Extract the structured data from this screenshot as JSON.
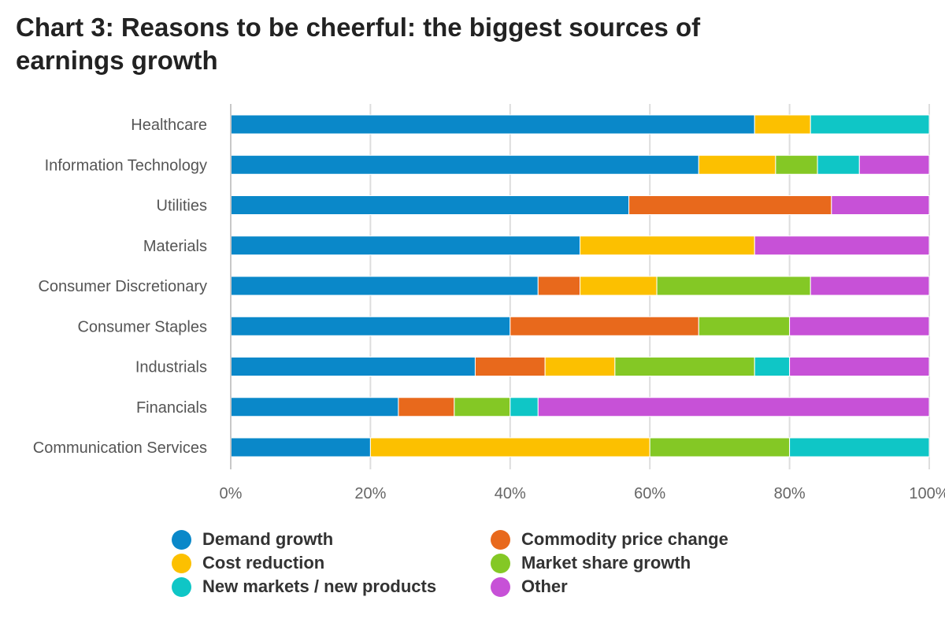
{
  "title": "Chart 3: Reasons to be cheerful: the biggest sources of earnings growth",
  "chart_data": {
    "type": "bar",
    "orientation": "horizontal",
    "stacked": true,
    "title": "Chart 3: Reasons to be cheerful: the biggest sources of earnings growth",
    "xlabel": "",
    "ylabel": "",
    "xlim": [
      0,
      100
    ],
    "x_ticks": [
      "0%",
      "20%",
      "40%",
      "60%",
      "80%",
      "100%"
    ],
    "x_tick_values": [
      0,
      20,
      40,
      60,
      80,
      100
    ],
    "grid": true,
    "legend_position": "bottom",
    "categories": [
      "Healthcare",
      "Information Technology",
      "Utilities",
      "Materials",
      "Consumer Discretionary",
      "Consumer Staples",
      "Industrials",
      "Financials",
      "Communication Services"
    ],
    "series": [
      {
        "name": "Demand growth",
        "color": "#0a88c9",
        "values": [
          75,
          67,
          57,
          50,
          44,
          40,
          35,
          24,
          20
        ]
      },
      {
        "name": "Commodity price change",
        "color": "#e8691c",
        "values": [
          0,
          0,
          29,
          0,
          6,
          27,
          10,
          8,
          0
        ]
      },
      {
        "name": "Cost reduction",
        "color": "#fcc000",
        "values": [
          8,
          11,
          0,
          25,
          11,
          0,
          10,
          0,
          40
        ]
      },
      {
        "name": "Market share growth",
        "color": "#84c825",
        "values": [
          0,
          6,
          0,
          0,
          22,
          13,
          20,
          8,
          20
        ]
      },
      {
        "name": "New markets / new products",
        "color": "#0fc6c6",
        "values": [
          17,
          6,
          0,
          0,
          0,
          0,
          5,
          4,
          20
        ]
      },
      {
        "name": "Other",
        "color": "#c751d7",
        "values": [
          0,
          10,
          14,
          25,
          17,
          20,
          20,
          56,
          0
        ]
      }
    ]
  },
  "legend": {
    "items": [
      {
        "label": "Demand growth",
        "color": "#0a88c9"
      },
      {
        "label": "Commodity price change",
        "color": "#e8691c"
      },
      {
        "label": "Cost reduction",
        "color": "#fcc000"
      },
      {
        "label": "Market share growth",
        "color": "#84c825"
      },
      {
        "label": "New markets / new products",
        "color": "#0fc6c6"
      },
      {
        "label": "Other",
        "color": "#c751d7"
      }
    ]
  }
}
